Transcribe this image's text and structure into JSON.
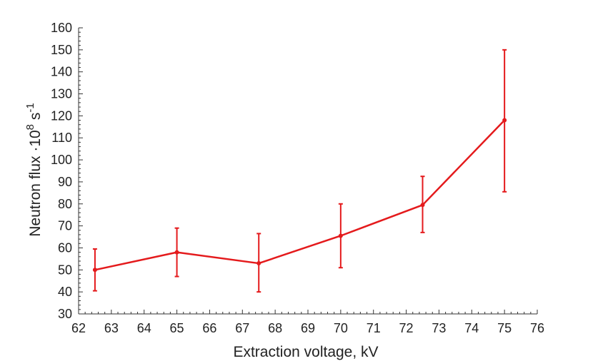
{
  "chart_data": {
    "type": "line",
    "xlabel": "Extraction voltage, kV",
    "ylabel": {
      "base": "Neutron flux ·10",
      "exp1": "8",
      "mid": " s",
      "exp2": "-1"
    },
    "xlim": [
      62,
      76
    ],
    "ylim": [
      30,
      160
    ],
    "x_ticks": [
      62,
      63,
      64,
      65,
      66,
      67,
      68,
      69,
      70,
      71,
      72,
      73,
      74,
      75,
      76
    ],
    "y_ticks": [
      30,
      40,
      50,
      60,
      70,
      80,
      90,
      100,
      110,
      120,
      130,
      140,
      150,
      160
    ],
    "grid": false,
    "series": [
      {
        "color": "#e41a1c",
        "x": [
          62.5,
          65,
          67.5,
          70,
          72.5,
          75
        ],
        "y": [
          50,
          58,
          53,
          65.5,
          79.5,
          118
        ],
        "y_err_low": [
          40.5,
          47,
          40,
          51,
          67,
          85.5
        ],
        "y_err_high": [
          59.5,
          69,
          66.5,
          80,
          92.5,
          150
        ]
      }
    ]
  }
}
